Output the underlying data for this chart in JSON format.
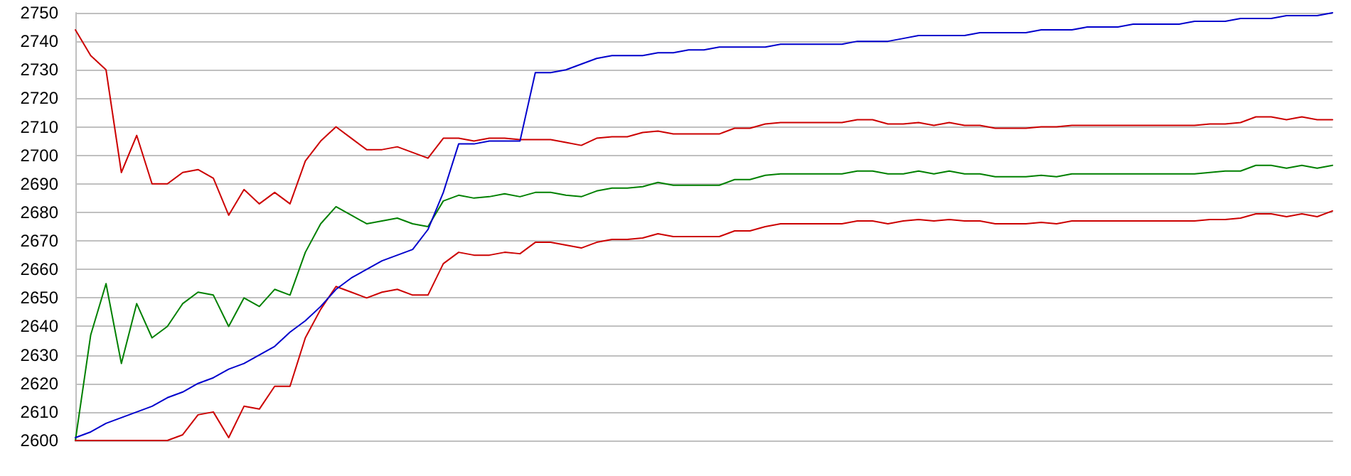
{
  "chart_data": {
    "type": "line",
    "categories": [
      null,
      null,
      null,
      null,
      null,
      null,
      null,
      null,
      null,
      null,
      null,
      null,
      null,
      null,
      null,
      null,
      null,
      null,
      null,
      null,
      null,
      null,
      null,
      null,
      null,
      null,
      null,
      null,
      null,
      null,
      null,
      null,
      null,
      null,
      null,
      null,
      null,
      null,
      null,
      null,
      null,
      null,
      null,
      null,
      null,
      null,
      null,
      null,
      null,
      null,
      null,
      null,
      null,
      null,
      null,
      null,
      null,
      null,
      null,
      null,
      null,
      null,
      null,
      null,
      null,
      null,
      null,
      null,
      null,
      null,
      null,
      null,
      null,
      null,
      null,
      null,
      null,
      null,
      null,
      null,
      null,
      null,
      null
    ],
    "series": [
      {
        "color": "#cc0000",
        "values": [
          2744,
          2735,
          2730,
          2694,
          2707,
          2690,
          2690,
          2694,
          2695,
          2692,
          2679,
          2688,
          2683,
          2687,
          2683,
          2698,
          2705,
          2710,
          2706,
          2702,
          2702,
          2703,
          2701,
          2699,
          2706,
          2706,
          2705,
          2706,
          2706,
          2705.5,
          2705.5,
          2705.5,
          2704.5,
          2703.5,
          2706,
          2706.5,
          2706.5,
          2708,
          2708.5,
          2707.5,
          2707.5,
          2707.5,
          2707.5,
          2709.5,
          2709.5,
          2711,
          2711.5,
          2711.5,
          2711.5,
          2711.5,
          2711.5,
          2712.5,
          2712.5,
          2711,
          2711,
          2711.5,
          2710.5,
          2711.5,
          2710.5,
          2710.5,
          2709.5,
          2709.5,
          2709.5,
          2710,
          2710,
          2710.5,
          2710.5,
          2710.5,
          2710.5,
          2710.5,
          2710.5,
          2710.5,
          2710.5,
          2710.5,
          2711,
          2711,
          2711.5,
          2713.5,
          2713.5,
          2712.5,
          2713.5,
          2712.5,
          2712.5
        ]
      },
      {
        "color": "#008000",
        "values": [
          2600,
          2637,
          2655,
          2627,
          2648,
          2636,
          2640,
          2648,
          2652,
          2651,
          2640,
          2650,
          2647,
          2653,
          2651,
          2666,
          2676,
          2682,
          2679,
          2676,
          2677,
          2678,
          2676,
          2675,
          2684,
          2686,
          2685,
          2685.5,
          2686.5,
          2685.5,
          2687,
          2687,
          2686,
          2685.5,
          2687.5,
          2688.5,
          2688.5,
          2689,
          2690.5,
          2689.5,
          2689.5,
          2689.5,
          2689.5,
          2691.5,
          2691.5,
          2693,
          2693.5,
          2693.5,
          2693.5,
          2693.5,
          2693.5,
          2694.5,
          2694.5,
          2693.5,
          2693.5,
          2694.5,
          2693.5,
          2694.5,
          2693.5,
          2693.5,
          2692.5,
          2692.5,
          2692.5,
          2693,
          2692.5,
          2693.5,
          2693.5,
          2693.5,
          2693.5,
          2693.5,
          2693.5,
          2693.5,
          2693.5,
          2693.5,
          2694,
          2694.5,
          2694.5,
          2696.5,
          2696.5,
          2695.5,
          2696.5,
          2695.5,
          2696.5
        ]
      },
      {
        "color": "#cc0000",
        "values": [
          2600,
          2600,
          2600,
          2600,
          2600,
          2600,
          2600,
          2602,
          2609,
          2610,
          2601,
          2612,
          2611,
          2619,
          2619,
          2636,
          2646,
          2654,
          2652,
          2650,
          2652,
          2653,
          2651,
          2651,
          2662,
          2666,
          2665,
          2665,
          2666,
          2665.5,
          2669.5,
          2669.5,
          2668.5,
          2667.5,
          2669.5,
          2670.5,
          2670.5,
          2671,
          2672.5,
          2671.5,
          2671.5,
          2671.5,
          2671.5,
          2673.5,
          2673.5,
          2675,
          2676,
          2676,
          2676,
          2676,
          2676,
          2677,
          2677,
          2676,
          2677,
          2677.5,
          2677,
          2677.5,
          2677,
          2677,
          2676,
          2676,
          2676,
          2676.5,
          2676,
          2677,
          2677,
          2677,
          2677,
          2677,
          2677,
          2677,
          2677,
          2677,
          2677.5,
          2677.5,
          2678,
          2679.5,
          2679.5,
          2678.5,
          2679.5,
          2678.5,
          2680.5
        ]
      },
      {
        "color": "#0000cc",
        "values": [
          2601,
          2603,
          2606,
          2608,
          2610,
          2612,
          2615,
          2617,
          2620,
          2622,
          2625,
          2627,
          2630,
          2633,
          2638,
          2642,
          2647,
          2653,
          2657,
          2660,
          2663,
          2665,
          2667,
          2674,
          2687,
          2704,
          2704,
          2705,
          2705,
          2705,
          2729,
          2729,
          2730,
          2732,
          2734,
          2735,
          2735,
          2735,
          2736,
          2736,
          2737,
          2737,
          2738,
          2738,
          2738,
          2738,
          2739,
          2739,
          2739,
          2739,
          2739,
          2740,
          2740,
          2740,
          2741,
          2742,
          2742,
          2742,
          2742,
          2743,
          2743,
          2743,
          2743,
          2744,
          2744,
          2744,
          2745,
          2745,
          2745,
          2746,
          2746,
          2746,
          2746,
          2747,
          2747,
          2747,
          2748,
          2748,
          2748,
          2749,
          2749,
          2749,
          2750
        ]
      }
    ],
    "ylim": [
      2600,
      2750
    ],
    "yticks": [
      2600,
      2610,
      2620,
      2630,
      2640,
      2650,
      2660,
      2670,
      2680,
      2690,
      2700,
      2710,
      2720,
      2730,
      2740,
      2750
    ],
    "grid": "y",
    "tick_labels": "y",
    "marker": "none",
    "line_style": "solid"
  }
}
